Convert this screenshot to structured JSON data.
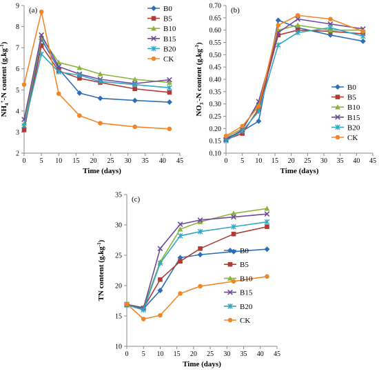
{
  "colors": {
    "B0": "#2F6EB5",
    "B5": "#B23A34",
    "B10": "#8DB33E",
    "B15": "#6E4A97",
    "B20": "#2FA7C4",
    "CK": "#F0862A"
  },
  "chart_data": [
    {
      "type": "line",
      "panel_label": "(a)",
      "xlabel": "Time (days)",
      "ylabel": {
        "pre": "NH",
        "sub": "4",
        "sup": "+",
        "post": "-N content (g.kg",
        "unit_sup": "-1",
        "close": ")"
      },
      "xlim": [
        0,
        45
      ],
      "xticks": [
        0,
        5,
        10,
        15,
        20,
        25,
        30,
        35,
        40,
        45
      ],
      "ylim": [
        2,
        9
      ],
      "yticks": [
        2,
        3,
        4,
        5,
        6,
        7,
        8,
        9
      ],
      "legend": "top-right",
      "x": [
        0,
        5,
        10,
        16,
        22,
        32,
        42
      ],
      "series": [
        {
          "name": "B0",
          "marker": "diamond",
          "values": [
            3.2,
            7.4,
            6.0,
            4.85,
            4.6,
            4.5,
            4.42
          ]
        },
        {
          "name": "B5",
          "marker": "square",
          "values": [
            3.1,
            7.1,
            5.9,
            5.55,
            5.35,
            5.05,
            4.88
          ]
        },
        {
          "name": "B10",
          "marker": "triangle",
          "values": [
            3.4,
            7.5,
            6.3,
            6.05,
            5.75,
            5.5,
            5.35
          ]
        },
        {
          "name": "B15",
          "marker": "x",
          "values": [
            3.6,
            7.6,
            6.1,
            5.75,
            5.5,
            5.3,
            5.48
          ]
        },
        {
          "name": "B20",
          "marker": "star",
          "values": [
            3.3,
            6.7,
            5.85,
            5.7,
            5.4,
            5.25,
            5.1
          ]
        },
        {
          "name": "CK",
          "marker": "circle",
          "values": [
            5.25,
            8.7,
            4.82,
            3.78,
            3.42,
            3.25,
            3.15
          ]
        }
      ]
    },
    {
      "type": "line",
      "panel_label": "(b)",
      "xlabel": "Time (days)",
      "ylabel": {
        "pre": "NO",
        "sub": "3",
        "sup": "-",
        "post": "-N content (g.kg",
        "unit_sup": "-1",
        "close": ")"
      },
      "xlim": [
        0,
        45
      ],
      "xticks": [
        0,
        5,
        10,
        15,
        20,
        25,
        30,
        35,
        40,
        45
      ],
      "ylim": [
        0.1,
        0.7
      ],
      "yticks": [
        "0.10",
        "0.15",
        "0.20",
        "0.25",
        "0.30",
        "0.35",
        "0.40",
        "0.45",
        "0.50",
        "0.55",
        "0.60",
        "0.65",
        "0.70"
      ],
      "legend": "lower-right",
      "x": [
        0,
        5,
        10,
        16,
        22,
        32,
        42
      ],
      "series": [
        {
          "name": "B0",
          "marker": "diamond",
          "values": [
            0.16,
            0.19,
            0.23,
            0.64,
            0.61,
            0.58,
            0.555
          ]
        },
        {
          "name": "B5",
          "marker": "square",
          "values": [
            0.155,
            0.18,
            0.28,
            0.58,
            0.6,
            0.595,
            0.585
          ]
        },
        {
          "name": "B10",
          "marker": "triangle",
          "values": [
            0.165,
            0.2,
            0.3,
            0.6,
            0.62,
            0.6,
            0.6
          ]
        },
        {
          "name": "B15",
          "marker": "x",
          "values": [
            0.155,
            0.195,
            0.31,
            0.59,
            0.645,
            0.625,
            0.605
          ]
        },
        {
          "name": "B20",
          "marker": "star",
          "values": [
            0.15,
            0.19,
            0.27,
            0.54,
            0.59,
            0.61,
            0.575
          ]
        },
        {
          "name": "CK",
          "marker": "circle",
          "values": [
            0.17,
            0.21,
            0.29,
            0.62,
            0.66,
            0.645,
            0.595
          ]
        }
      ]
    },
    {
      "type": "line",
      "panel_label": "(c)",
      "xlabel": "Time (days)",
      "ylabel": {
        "pre": "TN content (g.kg",
        "sub": "",
        "sup": "",
        "post": "",
        "unit_sup": "-1",
        "close": ")"
      },
      "xlim": [
        0,
        45
      ],
      "xticks": [
        0,
        5,
        10,
        15,
        20,
        25,
        30,
        35,
        40,
        45
      ],
      "ylim": [
        10,
        35
      ],
      "yticks": [
        10,
        15,
        20,
        25,
        30,
        35
      ],
      "legend": "lower-right",
      "x": [
        0,
        5,
        10,
        16,
        22,
        32,
        42
      ],
      "series": [
        {
          "name": "B0",
          "marker": "diamond",
          "values": [
            16.9,
            16.2,
            19.2,
            24.6,
            25.1,
            25.6,
            26.0
          ]
        },
        {
          "name": "B5",
          "marker": "square",
          "values": [
            16.8,
            16.3,
            21.0,
            24.0,
            26.1,
            28.5,
            29.7
          ]
        },
        {
          "name": "B10",
          "marker": "triangle",
          "values": [
            16.9,
            16.4,
            23.9,
            29.3,
            30.5,
            31.9,
            32.7
          ]
        },
        {
          "name": "B15",
          "marker": "x",
          "values": [
            16.9,
            16.3,
            26.1,
            30.1,
            30.8,
            31.3,
            31.8
          ]
        },
        {
          "name": "B20",
          "marker": "star",
          "values": [
            16.8,
            16.0,
            23.7,
            28.2,
            28.9,
            29.7,
            30.5
          ]
        },
        {
          "name": "CK",
          "marker": "circle",
          "values": [
            17.0,
            14.5,
            15.1,
            18.7,
            19.9,
            20.7,
            21.5
          ]
        }
      ]
    }
  ]
}
